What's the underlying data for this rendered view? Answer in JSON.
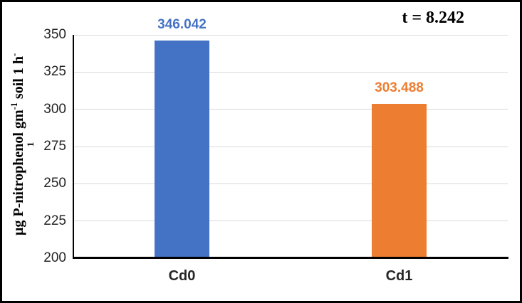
{
  "figure": {
    "background_color": "#FFFFFF",
    "frame_border_color": "#000000"
  },
  "annotation": {
    "text": "t = 8.242"
  },
  "ylabel": {
    "part1": "µg P-nitrophenol gm",
    "sup1": "-1",
    "part2": " soil 1 h",
    "sup2": "-",
    "line2": "1",
    "full": "µg P-nitrophenol gm⁻¹ soil 1 h⁻¹"
  },
  "chart_data": {
    "type": "bar",
    "categories": [
      "Cd0",
      "Cd1"
    ],
    "values": [
      346.042,
      303.488
    ],
    "value_labels": [
      "346.042",
      "303.488"
    ],
    "bar_colors": [
      "#4472C4",
      "#ED7D31"
    ],
    "value_label_colors": [
      "#4472C4",
      "#ED7D31"
    ],
    "title": "",
    "xlabel": "",
    "ylabel": "µg P-nitrophenol gm⁻¹ soil 1 h⁻¹",
    "ylim": [
      200,
      350
    ],
    "yticks": [
      200,
      225,
      250,
      275,
      300,
      325,
      350
    ],
    "grid": true,
    "gridline_color": "#D9D9D9",
    "axis_color": "#000000",
    "tick_label_color": "#262626",
    "annotation": "t = 8.242",
    "legend_position": "none"
  }
}
